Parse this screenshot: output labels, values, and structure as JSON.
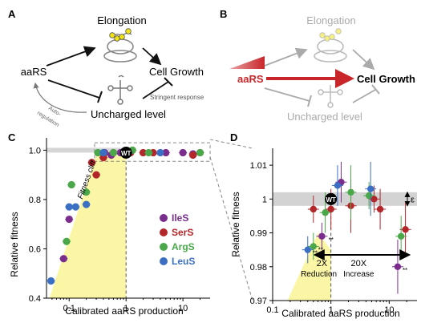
{
  "panels": {
    "A": {
      "label": "A",
      "nodes": {
        "elongation": "Elongation",
        "aars": "aaRS",
        "cell_growth": "Cell Growth",
        "uncharged": "Uncharged level"
      },
      "annotations": {
        "autoregulation_1": "Auto-",
        "autoregulation_2": "regulation",
        "stringent": "Stringent response"
      }
    },
    "B": {
      "label": "B",
      "nodes": {
        "elongation": "Elongation",
        "aars": "aaRS",
        "cell_growth": "Cell Growth",
        "uncharged": "Uncharged level"
      }
    },
    "C": {
      "label": "C",
      "annotation": "Fitness cliff",
      "wt_label": "WT",
      "legend": [
        {
          "name": "IleS",
          "color": "#7b2d8e"
        },
        {
          "name": "SerS",
          "color": "#b3262a"
        },
        {
          "name": "ArgS",
          "color": "#4aa84a"
        },
        {
          "name": "LeuS",
          "color": "#3a6fc4"
        }
      ]
    },
    "D": {
      "label": "D",
      "wt_label": "WT",
      "epsilon": "ε",
      "reduction_fold": "2X",
      "reduction_label": "Reduction",
      "increase_fold": "20X",
      "increase_label": "Increase",
      "star_markers": [
        "**",
        "**",
        "**",
        "**"
      ]
    }
  },
  "chart_data": [
    {
      "panel": "C",
      "type": "scatter",
      "xlabel": "Calibrated aaRS production",
      "ylabel": "Relative fitness",
      "xscale": "log",
      "xlim": [
        0.04,
        30
      ],
      "ylim": [
        0.4,
        1.05
      ],
      "xticks": [
        0.1,
        1,
        10
      ],
      "xtick_labels": [
        "0.1",
        "1",
        "10"
      ],
      "yticks": [
        0.4,
        0.6,
        0.8,
        1.0
      ],
      "ytick_labels": [
        "0.4",
        "0.6",
        "0.8",
        "1.0"
      ],
      "series": [
        {
          "name": "IleS",
          "color": "#7b2d8e",
          "points": [
            [
              0.08,
              0.56
            ],
            [
              0.1,
              0.72
            ],
            [
              0.42,
              0.99
            ],
            [
              0.55,
              0.98
            ],
            [
              0.8,
              0.99
            ],
            [
              5,
              0.99
            ],
            [
              10,
              0.99
            ],
            [
              15,
              0.985
            ]
          ]
        },
        {
          "name": "SerS",
          "color": "#b3262a",
          "points": [
            [
              0.25,
              0.95
            ],
            [
              0.3,
              0.9
            ],
            [
              0.4,
              0.97
            ],
            [
              0.6,
              0.99
            ],
            [
              1.2,
              0.99
            ],
            [
              2,
              0.99
            ],
            [
              3,
              0.99
            ],
            [
              15,
              0.98
            ],
            [
              20,
              0.99
            ]
          ]
        },
        {
          "name": "ArgS",
          "color": "#4aa84a",
          "points": [
            [
              0.09,
              0.63
            ],
            [
              0.11,
              0.86
            ],
            [
              0.2,
              0.83
            ],
            [
              0.32,
              0.99
            ],
            [
              0.6,
              0.99
            ],
            [
              1.3,
              1.0
            ],
            [
              2.5,
              0.99
            ],
            [
              20,
              0.99
            ]
          ]
        },
        {
          "name": "LeuS",
          "color": "#3a6fc4",
          "points": [
            [
              0.048,
              0.47
            ],
            [
              0.1,
              0.77
            ],
            [
              0.13,
              0.77
            ],
            [
              0.2,
              0.78
            ],
            [
              0.4,
              0.99
            ],
            [
              1.1,
              0.99
            ],
            [
              4,
              0.99
            ]
          ]
        }
      ]
    },
    {
      "panel": "D",
      "type": "scatter",
      "xlabel": "Calibrated aaRS production",
      "ylabel": "Relative fitness",
      "xscale": "log",
      "xlim": [
        0.1,
        30
      ],
      "ylim": [
        0.97,
        1.015
      ],
      "xticks": [
        0.1,
        1,
        10
      ],
      "xtick_labels": [
        "0.1",
        "1",
        "10"
      ],
      "yticks": [
        0.97,
        0.98,
        0.99,
        1,
        1.01
      ],
      "ytick_labels": [
        "0.97",
        "0.98",
        "0.99",
        "1",
        "1.01"
      ],
      "series": [
        {
          "name": "IleS",
          "color": "#7b2d8e",
          "points": [
            [
              0.7,
              0.989
            ],
            [
              1.5,
              1.005
            ],
            [
              14,
              0.98
            ]
          ]
        },
        {
          "name": "SerS",
          "color": "#b3262a",
          "points": [
            [
              0.5,
              0.997
            ],
            [
              1.0,
              0.997
            ],
            [
              2.2,
              0.998
            ],
            [
              5.5,
              1.0
            ],
            [
              7,
              0.997
            ],
            [
              19,
              0.991
            ]
          ]
        },
        {
          "name": "ArgS",
          "color": "#4aa84a",
          "points": [
            [
              0.5,
              0.986
            ],
            [
              0.8,
              0.996
            ],
            [
              2.2,
              1.002
            ],
            [
              4.5,
              1.001
            ],
            [
              16,
              0.989
            ]
          ]
        },
        {
          "name": "LeuS",
          "color": "#3a6fc4",
          "points": [
            [
              0.4,
              0.985
            ],
            [
              1.3,
              1.004
            ],
            [
              4.8,
              1.003
            ]
          ]
        }
      ]
    }
  ]
}
